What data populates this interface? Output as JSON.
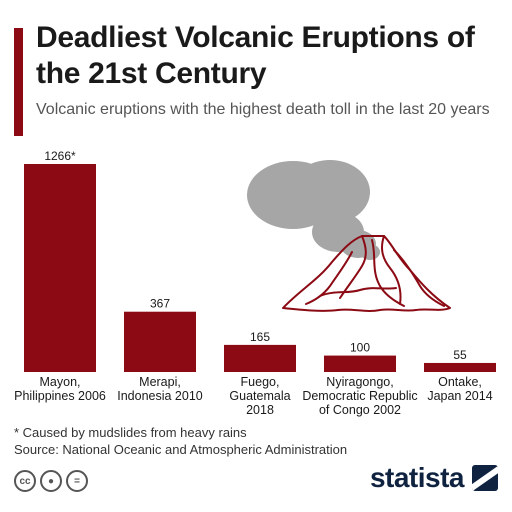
{
  "header": {
    "title": "Deadliest Volcanic Eruptions of the 21st Century",
    "subtitle": "Volcanic eruptions with the highest death toll in the last 20 years"
  },
  "footer": {
    "footnote": "* Caused by mudslides from heavy rains",
    "source": "Source: National Oceanic and Atmospheric Administration",
    "brand": "statista"
  },
  "colors": {
    "bar": "#8b0a14",
    "accent": "#8b0a14",
    "smoke": "#a6a6a6"
  },
  "chart_data": {
    "type": "bar",
    "categories": [
      [
        "Mayon,",
        "Philippines 2006"
      ],
      [
        "Merapi,",
        "Indonesia 2010"
      ],
      [
        "Fuego,",
        "Guatemala",
        "2018"
      ],
      [
        "Nyiragongo,",
        "Democratic Republic",
        "of Congo 2002"
      ],
      [
        "Ontake,",
        "Japan 2014"
      ]
    ],
    "values": [
      1266,
      367,
      165,
      100,
      55
    ],
    "value_labels": [
      "1266*",
      "367",
      "165",
      "100",
      "55"
    ],
    "ylim": [
      0,
      1266
    ],
    "grid": false,
    "legend": "none"
  }
}
